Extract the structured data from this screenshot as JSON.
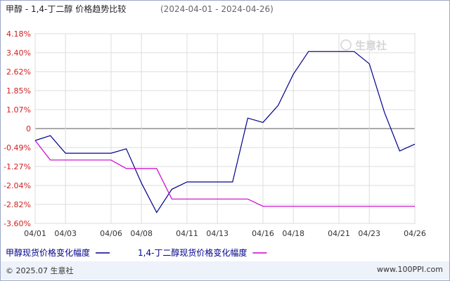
{
  "chart_data": {
    "type": "line",
    "title": "甲醇 - 1,4-丁二醇 价格趋势比较",
    "date_range": "(2024-04-01 - 2024-04-26)",
    "x": [
      "04/01",
      "04/02",
      "04/03",
      "04/04",
      "04/05",
      "04/06",
      "04/07",
      "04/08",
      "04/09",
      "04/10",
      "04/11",
      "04/12",
      "04/13",
      "04/14",
      "04/15",
      "04/16",
      "04/17",
      "04/18",
      "04/19",
      "04/20",
      "04/21",
      "04/22",
      "04/23",
      "04/24",
      "04/25",
      "04/26"
    ],
    "x_tick_labels": [
      "04/01",
      "04/03",
      "04/06",
      "04/08",
      "04/11",
      "04/13",
      "04/16",
      "04/18",
      "04/21",
      "04/23",
      "04/26"
    ],
    "y_tick_labels": [
      "4.18%",
      "3.40%",
      "2.62%",
      "1.85%",
      "1.07%",
      "0",
      "-0.49%",
      "-1.27%",
      "-2.04%",
      "-2.82%",
      "-3.60%"
    ],
    "ylim": [
      -3.6,
      4.18
    ],
    "series": [
      {
        "name": "甲醇现货价格变化幅度",
        "color": "#00008b",
        "values": [
          -0.2,
          0.0,
          -0.72,
          -0.72,
          -0.72,
          -0.72,
          -0.54,
          -1.95,
          -3.15,
          -2.2,
          -1.9,
          -1.9,
          -1.9,
          -1.9,
          0.72,
          0.54,
          1.24,
          2.52,
          3.45,
          3.45,
          3.45,
          3.45,
          2.95,
          0.95,
          -0.63,
          -0.35
        ]
      },
      {
        "name": "1,4-丁二醇现货价格变化幅度",
        "color": "#cc00cc",
        "values": [
          -0.2,
          -1.0,
          -1.0,
          -1.0,
          -1.0,
          -1.0,
          -1.35,
          -1.35,
          -1.35,
          -2.6,
          -2.6,
          -2.6,
          -2.6,
          -2.6,
          -2.6,
          -2.9,
          -2.9,
          -2.9,
          -2.9,
          -2.9,
          -2.9,
          -2.9,
          -2.9,
          -2.9,
          -2.9,
          -2.9
        ]
      }
    ],
    "grid": true,
    "legend_position": "bottom"
  },
  "watermark": "生意社",
  "footer": {
    "copyright": "© 2025.07 生意社",
    "url": "www.100PPI.com"
  }
}
